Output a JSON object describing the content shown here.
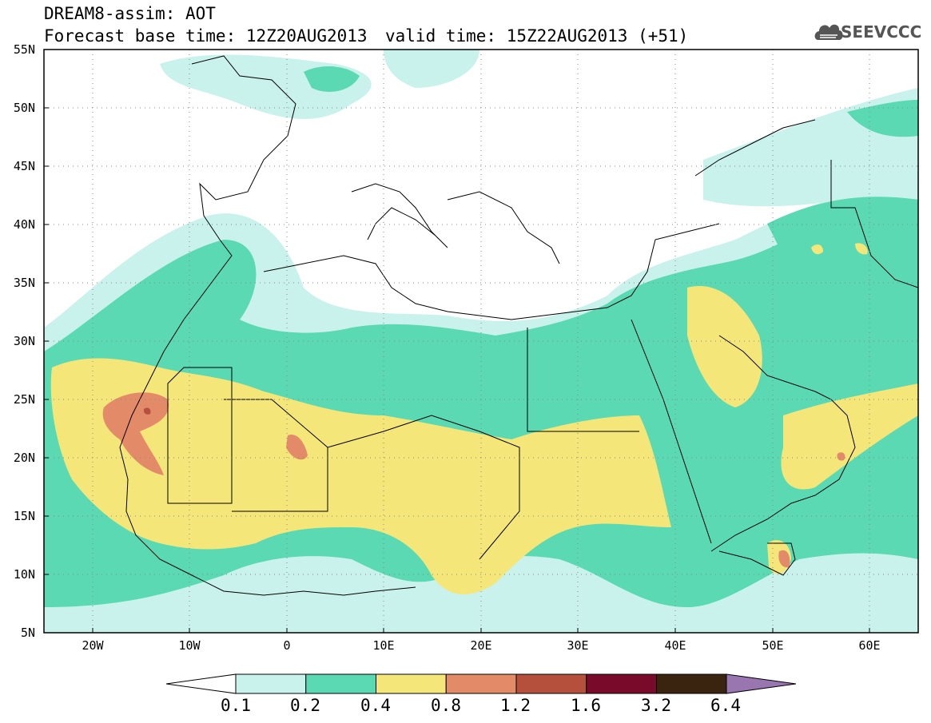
{
  "header": {
    "title_line1": "DREAM8-assim: AOT",
    "title_line2": "Forecast base time: 12Z20AUG2013",
    "valid_time": "valid time: 15Z22AUG2013 (+51)",
    "logo_text": "SEEVCCC",
    "logo_icon": "cloud-icon"
  },
  "map": {
    "lat_labels": [
      "55N",
      "50N",
      "45N",
      "40N",
      "35N",
      "30N",
      "25N",
      "20N",
      "15N",
      "10N",
      "5N"
    ],
    "lon_labels": [
      "20W",
      "10W",
      "0",
      "10E",
      "20E",
      "30E",
      "40E",
      "50E",
      "60E"
    ],
    "lat_range": [
      5,
      55
    ],
    "lon_range": [
      -25,
      65
    ],
    "grid": "dotted"
  },
  "colorbar": {
    "labels": [
      "0.1",
      "0.2",
      "0.4",
      "0.8",
      "1.2",
      "1.6",
      "3.2",
      "6.4"
    ],
    "colors": [
      "#c9f2ec",
      "#5ad9b3",
      "#f5e67a",
      "#e38a68",
      "#b5503c",
      "#7a0a2a",
      "#3a2410",
      "#9a76b0"
    ]
  }
}
